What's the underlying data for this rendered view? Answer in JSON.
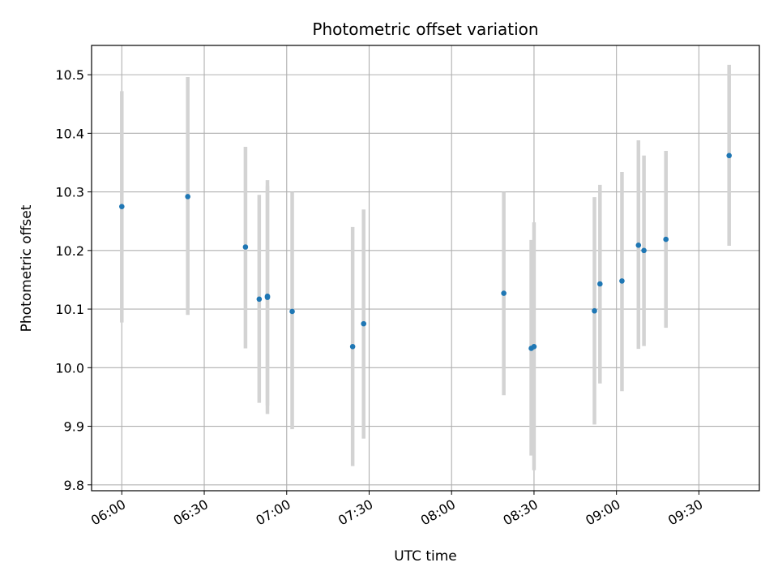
{
  "chart_data": {
    "type": "scatter",
    "title": "Photometric offset variation",
    "xlabel": "UTC time",
    "ylabel": "Photometric offset",
    "x_tick_labels": [
      "06:00",
      "06:30",
      "07:00",
      "07:30",
      "08:00",
      "08:30",
      "09:00",
      "09:30"
    ],
    "y_tick_labels": [
      "9.8",
      "9.9",
      "10.0",
      "10.1",
      "10.2",
      "10.3",
      "10.4",
      "10.5"
    ],
    "ylim": [
      9.79,
      10.55
    ],
    "xlim": [
      "05:49",
      "09:52"
    ],
    "grid": true,
    "colors": {
      "point": "#1f77b4",
      "errorbar": "#d3d3d3",
      "grid": "#b0b0b0"
    },
    "points": [
      {
        "x": "06:00",
        "y": 10.275,
        "y_low": 10.077,
        "y_high": 10.472
      },
      {
        "x": "06:24",
        "y": 10.292,
        "y_low": 10.09,
        "y_high": 10.496
      },
      {
        "x": "06:45",
        "y": 10.206,
        "y_low": 10.033,
        "y_high": 10.377
      },
      {
        "x": "06:50",
        "y": 10.117,
        "y_low": 9.94,
        "y_high": 10.295
      },
      {
        "x": "06:53",
        "y": 10.12,
        "y_low": 9.935,
        "y_high": 10.31
      },
      {
        "x": "06:53",
        "y": 10.122,
        "y_low": 9.921,
        "y_high": 10.32
      },
      {
        "x": "07:02",
        "y": 10.096,
        "y_low": 9.895,
        "y_high": 10.3
      },
      {
        "x": "07:24",
        "y": 10.036,
        "y_low": 9.832,
        "y_high": 10.24
      },
      {
        "x": "07:28",
        "y": 10.075,
        "y_low": 9.879,
        "y_high": 10.27
      },
      {
        "x": "08:19",
        "y": 10.127,
        "y_low": 9.953,
        "y_high": 10.3
      },
      {
        "x": "08:29",
        "y": 10.033,
        "y_low": 9.85,
        "y_high": 10.218
      },
      {
        "x": "08:30",
        "y": 10.036,
        "y_low": 9.825,
        "y_high": 10.248
      },
      {
        "x": "08:52",
        "y": 10.097,
        "y_low": 9.903,
        "y_high": 10.291
      },
      {
        "x": "08:54",
        "y": 10.143,
        "y_low": 9.973,
        "y_high": 10.312
      },
      {
        "x": "09:02",
        "y": 10.148,
        "y_low": 9.96,
        "y_high": 10.334
      },
      {
        "x": "09:08",
        "y": 10.209,
        "y_low": 10.032,
        "y_high": 10.388
      },
      {
        "x": "09:10",
        "y": 10.2,
        "y_low": 10.037,
        "y_high": 10.362
      },
      {
        "x": "09:18",
        "y": 10.219,
        "y_low": 10.068,
        "y_high": 10.37
      },
      {
        "x": "09:41",
        "y": 10.362,
        "y_low": 10.208,
        "y_high": 10.517
      }
    ]
  }
}
